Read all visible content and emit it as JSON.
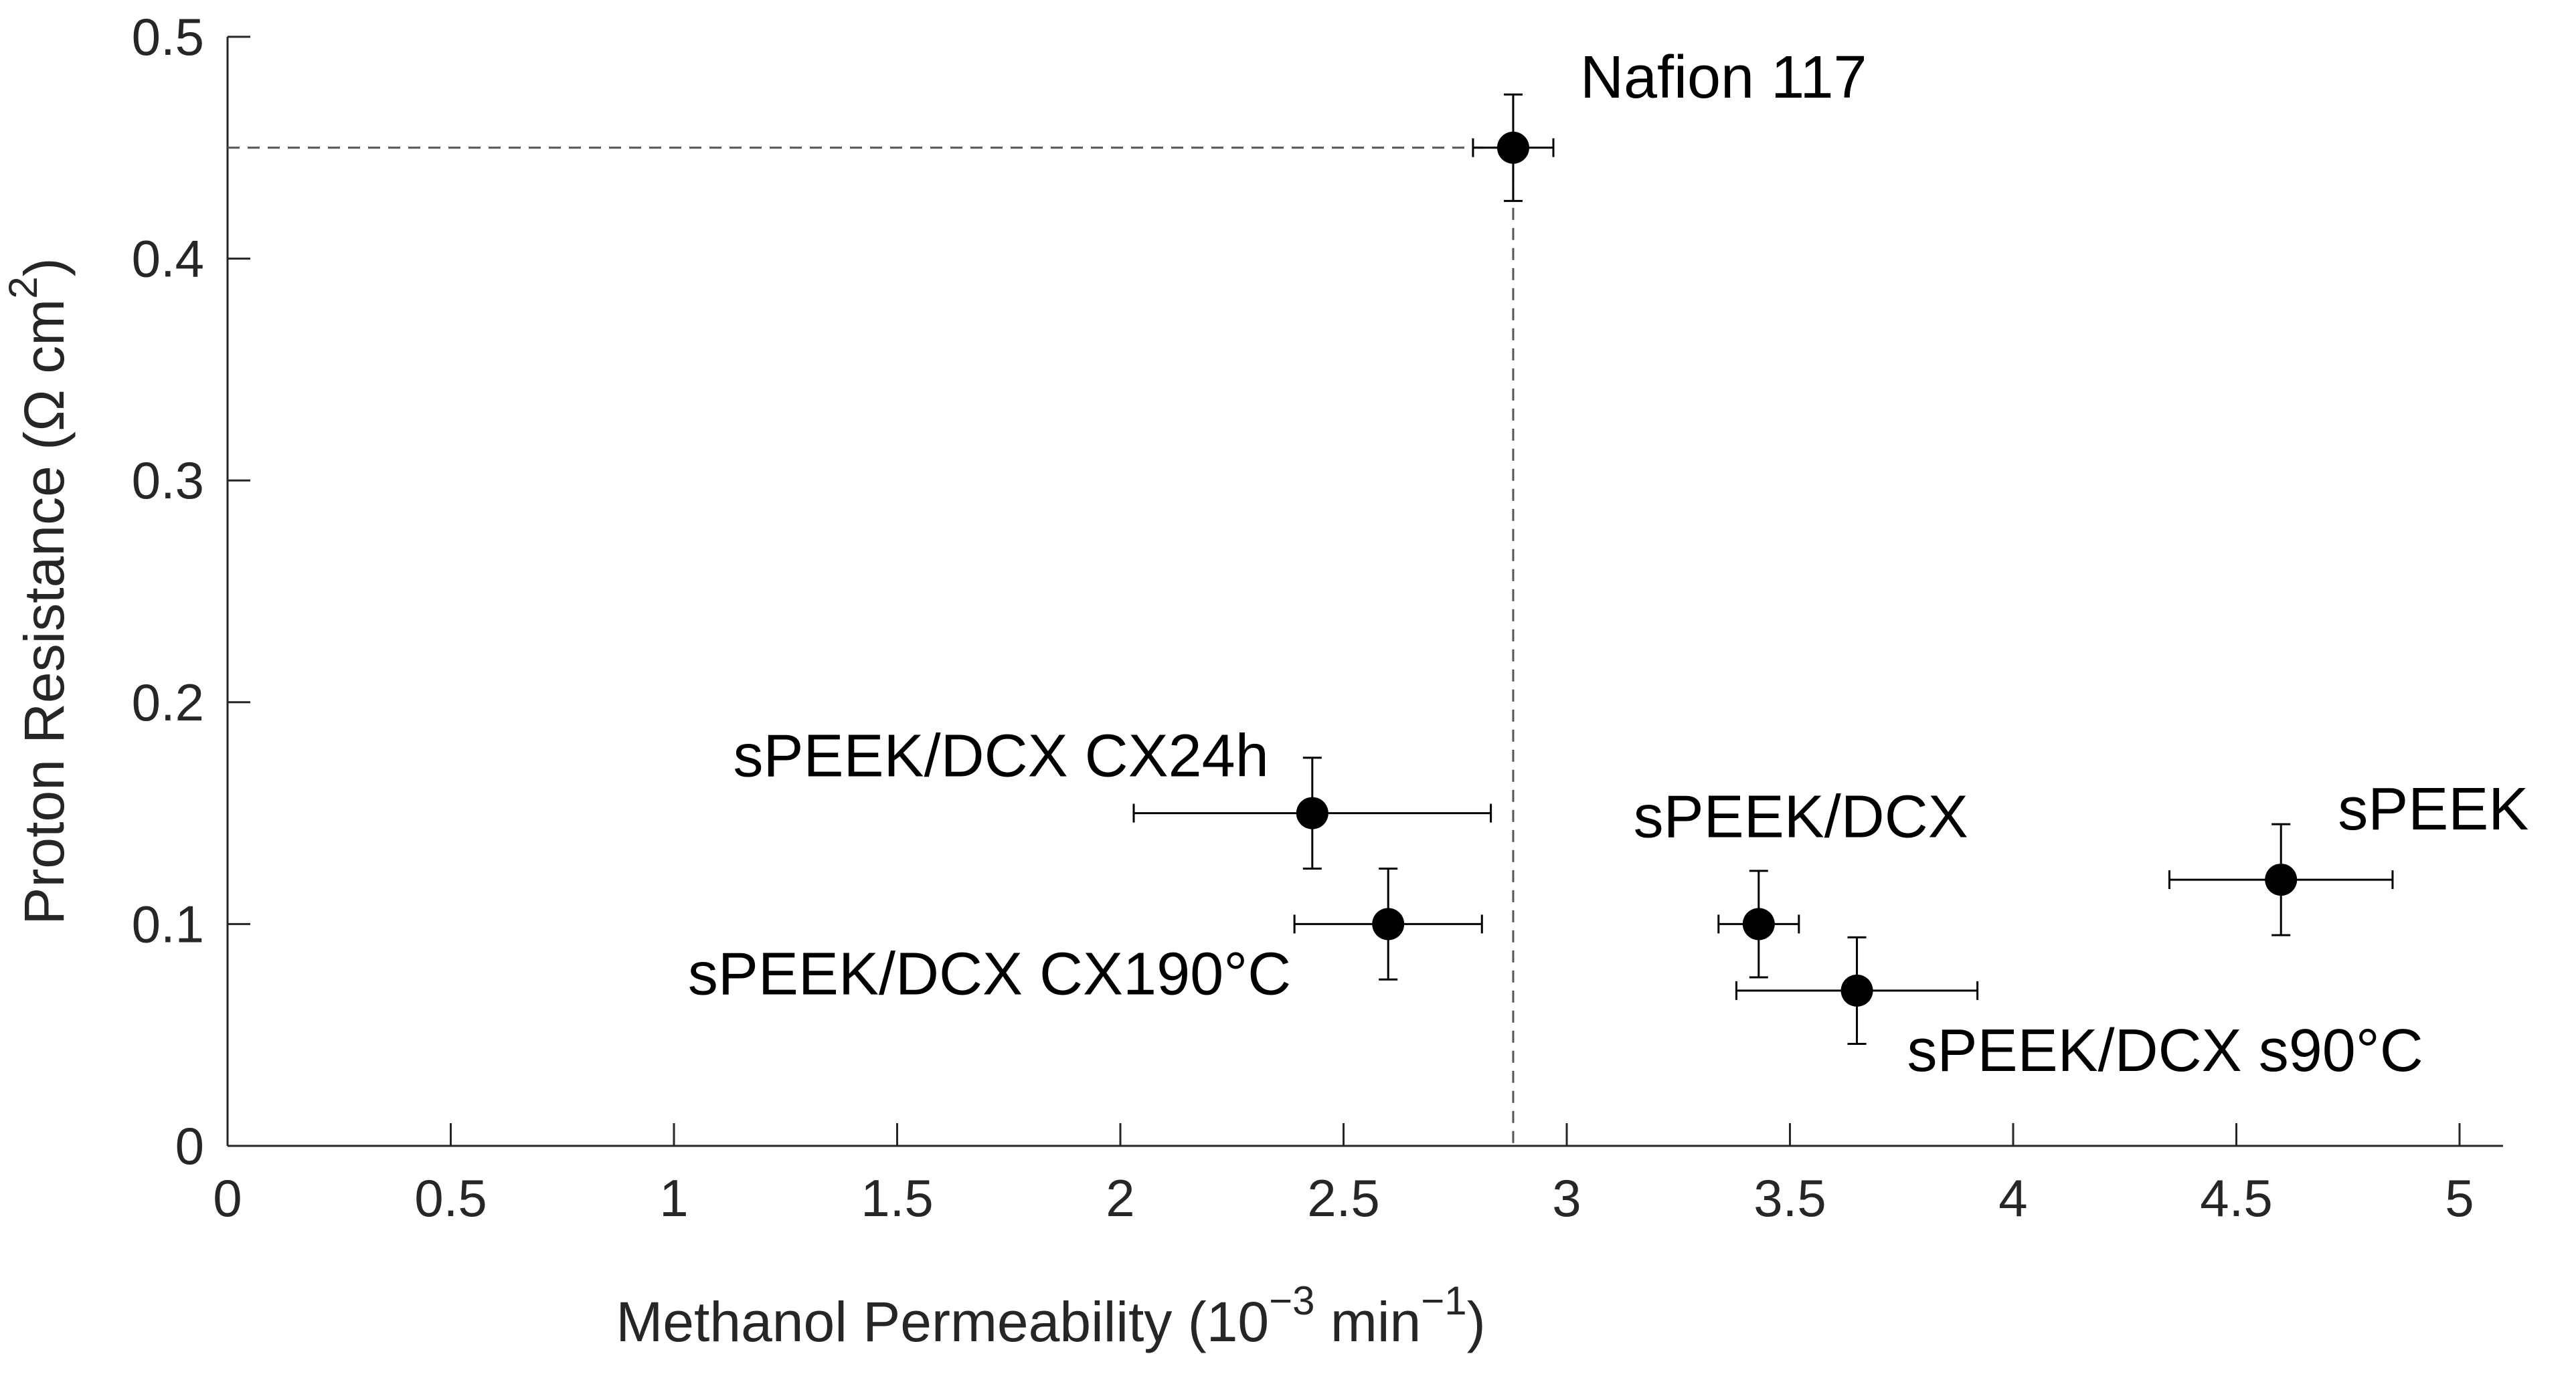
{
  "chart_data": {
    "type": "scatter",
    "title": "",
    "xlabel": {
      "prefix": "Methanol Permeability (10",
      "sup1": "−3",
      "mid": " min",
      "sup2": "−1",
      "suffix": ")"
    },
    "ylabel": {
      "prefix": "Proton Resistance (Ω cm",
      "sup": "2",
      "suffix": ")"
    },
    "xlim": [
      0,
      5.1
    ],
    "ylim": [
      0,
      0.5
    ],
    "xticks": [
      0,
      0.5,
      1,
      1.5,
      2,
      2.5,
      3,
      3.5,
      4,
      4.5,
      5
    ],
    "xtick_labels": [
      "0",
      "0.5",
      "1",
      "1.5",
      "2",
      "2.5",
      "3",
      "3.5",
      "4",
      "4.5",
      "5"
    ],
    "yticks": [
      0,
      0.1,
      0.2,
      0.3,
      0.4,
      0.5
    ],
    "ytick_labels": [
      "0",
      "0.1",
      "0.2",
      "0.3",
      "0.4",
      "0.5"
    ],
    "grid": false,
    "reference": {
      "x": 2.88,
      "y": 0.45,
      "style": "dashed"
    },
    "points": [
      {
        "label": "Nafion 117",
        "x": 2.88,
        "y": 0.45,
        "xerr": 0.09,
        "yerr": 0.024,
        "label_side": "upper-right"
      },
      {
        "label": "sPEEK/DCX CX24h",
        "x": 2.43,
        "y": 0.15,
        "xerr": 0.4,
        "yerr": 0.025,
        "label_side": "upper-left"
      },
      {
        "label": "sPEEK/DCX CX190°C",
        "x": 2.6,
        "y": 0.1,
        "xerr": 0.21,
        "yerr": 0.025,
        "label_side": "lower-left"
      },
      {
        "label": "sPEEK/DCX",
        "x": 3.43,
        "y": 0.1,
        "xerr": 0.09,
        "yerr": 0.024,
        "label_side": "upper-left"
      },
      {
        "label": "sPEEK/DCX s90°C",
        "x": 3.65,
        "y": 0.07,
        "xerr": 0.27,
        "yerr": 0.024,
        "label_side": "lower-right"
      },
      {
        "label": "sPEEK",
        "x": 4.6,
        "y": 0.12,
        "xerr": 0.25,
        "yerr": 0.025,
        "label_side": "upper-right"
      }
    ]
  }
}
